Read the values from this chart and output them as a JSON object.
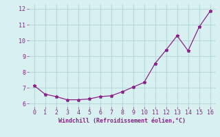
{
  "x": [
    0,
    1,
    2,
    3,
    4,
    5,
    6,
    7,
    8,
    9,
    10,
    11,
    12,
    13,
    14,
    15,
    16
  ],
  "y": [
    7.15,
    6.6,
    6.45,
    6.25,
    6.25,
    6.3,
    6.45,
    6.5,
    6.75,
    7.05,
    7.35,
    8.55,
    9.4,
    10.3,
    9.35,
    10.85,
    11.85
  ],
  "line_color": "#882288",
  "marker": "*",
  "marker_color": "#882288",
  "bg_color": "#d8f0f0",
  "grid_color": "#b8dada",
  "xlabel": "Windchill (Refroidissement éolien,°C)",
  "xlabel_color": "#882288",
  "tick_color": "#882288",
  "xlim": [
    -0.5,
    16.5
  ],
  "ylim": [
    5.8,
    12.3
  ],
  "yticks": [
    6,
    7,
    8,
    9,
    10,
    11,
    12
  ],
  "xticks": [
    0,
    1,
    2,
    3,
    4,
    5,
    6,
    7,
    8,
    9,
    10,
    11,
    12,
    13,
    14,
    15,
    16
  ]
}
